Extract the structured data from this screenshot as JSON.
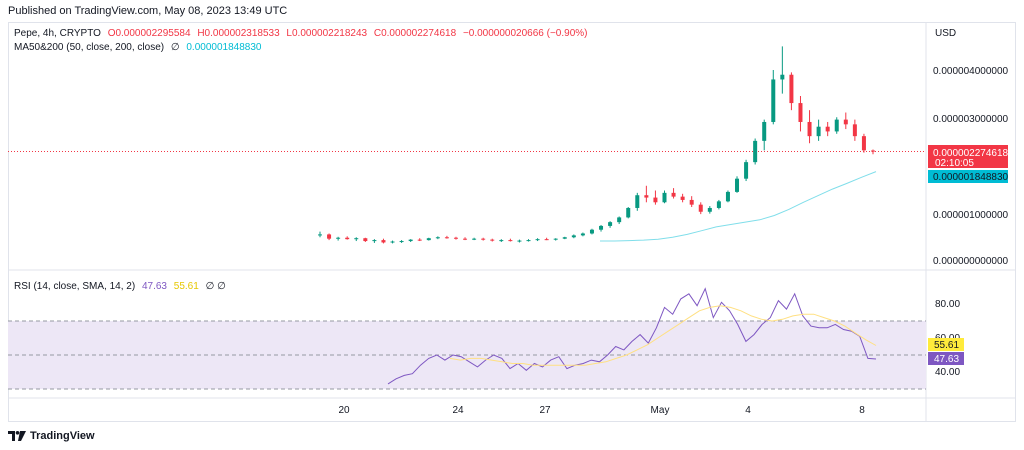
{
  "header": {
    "published": "Published on TradingView.com, May 08, 2023 13:49 UTC"
  },
  "legend": {
    "symbol": "Pepe, 4h, CRYPTO",
    "open": "O0.000002295584",
    "high": "H0.000002318533",
    "low": "L0.000002218243",
    "close": "C0.000002274618",
    "change": "−0.000000020666 (−0.90%)",
    "ma_label": "MA50&200 (50, close, 200, close)",
    "ma_icon": "∅",
    "ma_value": "0.000001848830",
    "rsi_label": "RSI (14, close, SMA, 14, 2)",
    "rsi_value": "47.63",
    "rsi_sma_value": "55.61",
    "rsi_icons": "∅ ∅"
  },
  "price_axis": {
    "currency": "USD",
    "ticks": [
      "0.000004000000",
      "0.000003000000",
      "0.000002000000",
      "0.000001000000",
      "0.000000000000"
    ],
    "last_price_tag": "0.000002274618",
    "countdown": "02:10:05",
    "ma_tag": "0.000001848830"
  },
  "rsi_axis": {
    "ticks": [
      "80.00",
      "60.00",
      "40.00"
    ],
    "tag_sma": "55.61",
    "tag_rsi": "47.63"
  },
  "time_axis": {
    "ticks": [
      "20",
      "24",
      "27",
      "May",
      "4",
      "8"
    ]
  },
  "footer": {
    "brand": "TradingView"
  },
  "colors": {
    "up": "#089981",
    "down": "#f23645",
    "ma": "#80deea",
    "rsi": "#7e57c2",
    "rsi_sma": "#ffe082",
    "rsi_band": "#ede7f6",
    "price_tag": "#f23645",
    "ma_tag": "#00bcd4"
  },
  "chart_data": [
    {
      "type": "candlestick",
      "title": "Pepe, 4h, CRYPTO",
      "ylabel": "USD",
      "ylim": [
        0,
        4.5e-06
      ],
      "x_ticks": [
        "20",
        "24",
        "27",
        "May",
        "4",
        "8"
      ],
      "last_close": 2.274618e-06,
      "ohlc_points": [
        [
          5e-07,
          5.8e-07,
          4.6e-07,
          5.2e-07
        ],
        [
          5.2e-07,
          5.4e-07,
          4e-07,
          4.3e-07
        ],
        [
          4.3e-07,
          4.7e-07,
          3.9e-07,
          4.5e-07
        ],
        [
          4.5e-07,
          4.8e-07,
          4.1e-07,
          4.2e-07
        ],
        [
          4.2e-07,
          4.6e-07,
          3.8e-07,
          4.4e-07
        ],
        [
          4.4e-07,
          4.5e-07,
          3.6e-07,
          3.8e-07
        ],
        [
          3.8e-07,
          4.2e-07,
          3.4e-07,
          4e-07
        ],
        [
          4e-07,
          4.3e-07,
          3.3e-07,
          3.5e-07
        ],
        [
          3.5e-07,
          3.9e-07,
          3.3e-07,
          3.7e-07
        ],
        [
          3.7e-07,
          4e-07,
          3.4e-07,
          3.8e-07
        ],
        [
          3.8e-07,
          4.2e-07,
          3.6e-07,
          4.1e-07
        ],
        [
          4.1e-07,
          4.4e-07,
          3.8e-07,
          4e-07
        ],
        [
          4e-07,
          4.5e-07,
          3.9e-07,
          4.4e-07
        ],
        [
          4.4e-07,
          4.8e-07,
          4.2e-07,
          4.6e-07
        ],
        [
          4.6e-07,
          4.9e-07,
          4.3e-07,
          4.5e-07
        ],
        [
          4.5e-07,
          4.7e-07,
          4.1e-07,
          4.3e-07
        ],
        [
          4.3e-07,
          4.6e-07,
          4e-07,
          4.2e-07
        ],
        [
          4.2e-07,
          4.5e-07,
          4e-07,
          4.3e-07
        ],
        [
          4.3e-07,
          4.5e-07,
          3.9e-07,
          4.1e-07
        ],
        [
          4.1e-07,
          4.3e-07,
          3.7e-07,
          3.9e-07
        ],
        [
          3.9e-07,
          4.2e-07,
          3.6e-07,
          4e-07
        ],
        [
          4e-07,
          4.3e-07,
          3.7e-07,
          3.8e-07
        ],
        [
          3.8e-07,
          4.1e-07,
          3.5e-07,
          3.9e-07
        ],
        [
          3.9e-07,
          4.2e-07,
          3.7e-07,
          4e-07
        ],
        [
          4e-07,
          4.4e-07,
          3.8e-07,
          4.2e-07
        ],
        [
          4.2e-07,
          4.5e-07,
          4e-07,
          4.1e-07
        ],
        [
          4.1e-07,
          4.4e-07,
          3.9e-07,
          4.3e-07
        ],
        [
          4.3e-07,
          4.7e-07,
          4.2e-07,
          4.6e-07
        ],
        [
          4.6e-07,
          5.2e-07,
          4.4e-07,
          5e-07
        ],
        [
          5e-07,
          5.6e-07,
          4.8e-07,
          5.4e-07
        ],
        [
          5.4e-07,
          6.4e-07,
          5.2e-07,
          6.2e-07
        ],
        [
          6.2e-07,
          7.2e-07,
          5.8e-07,
          7e-07
        ],
        [
          7e-07,
          8e-07,
          6.6e-07,
          7.8e-07
        ],
        [
          7.8e-07,
          9e-07,
          7.4e-07,
          8.8e-07
        ],
        [
          8.8e-07,
          1.1e-06,
          8.6e-07,
          1.08e-06
        ],
        [
          1.08e-06,
          1.4e-06,
          1.02e-06,
          1.35e-06
        ],
        [
          1.35e-06,
          1.55e-06,
          1.2e-06,
          1.3e-06
        ],
        [
          1.3e-06,
          1.45e-06,
          1.15e-06,
          1.2e-06
        ],
        [
          1.2e-06,
          1.45e-06,
          1.18e-06,
          1.4e-06
        ],
        [
          1.4e-06,
          1.5e-06,
          1.28e-06,
          1.32e-06
        ],
        [
          1.32e-06,
          1.38e-06,
          1.2e-06,
          1.25e-06
        ],
        [
          1.25e-06,
          1.33e-06,
          1.1e-06,
          1.15e-06
        ],
        [
          1.15e-06,
          1.2e-06,
          9.5e-07,
          1e-06
        ],
        [
          1e-06,
          1.12e-06,
          9.6e-07,
          1.08e-06
        ],
        [
          1.08e-06,
          1.25e-06,
          1.05e-06,
          1.22e-06
        ],
        [
          1.22e-06,
          1.45e-06,
          1.2e-06,
          1.42e-06
        ],
        [
          1.42e-06,
          1.75e-06,
          1.4e-06,
          1.7e-06
        ],
        [
          1.7e-06,
          2.1e-06,
          1.65e-06,
          2.05e-06
        ],
        [
          2.05e-06,
          2.55e-06,
          2e-06,
          2.5e-06
        ],
        [
          2.5e-06,
          2.95e-06,
          2.3e-06,
          2.9e-06
        ],
        [
          2.9e-06,
          4e-06,
          2.85e-06,
          3.8e-06
        ],
        [
          3.8e-06,
          4.5e-06,
          3.5e-06,
          3.9e-06
        ],
        [
          3.9e-06,
          3.95e-06,
          3.15e-06,
          3.3e-06
        ],
        [
          3.3e-06,
          3.45e-06,
          2.7e-06,
          2.9e-06
        ],
        [
          2.9e-06,
          3.15e-06,
          2.45e-06,
          2.6e-06
        ],
        [
          2.6e-06,
          2.95e-06,
          2.5e-06,
          2.8e-06
        ],
        [
          2.8e-06,
          2.9e-06,
          2.6e-06,
          2.7e-06
        ],
        [
          2.7e-06,
          3e-06,
          2.65e-06,
          2.95e-06
        ],
        [
          2.95e-06,
          3.1e-06,
          2.75e-06,
          2.85e-06
        ],
        [
          2.85e-06,
          2.95e-06,
          2.5e-06,
          2.6e-06
        ],
        [
          2.6e-06,
          2.65e-06,
          2.25e-06,
          2.3e-06
        ],
        [
          2.295584e-06,
          2.318533e-06,
          2.218243e-06,
          2.274618e-06
        ]
      ],
      "ma_values": [
        3.8e-07,
        3.8e-07,
        3.9e-07,
        4e-07,
        4.2e-07,
        4.6e-07,
        5.2e-07,
        6e-07,
        6.8e-07,
        7.3e-07,
        7.8e-07,
        8.3e-07,
        9.2e-07,
        1.05e-06,
        1.2e-06,
        1.34e-06,
        1.48e-06,
        1.6e-06,
        1.73e-06,
        1.84883e-06
      ]
    },
    {
      "type": "line",
      "title": "RSI (14, close, SMA, 14, 2)",
      "ylim": [
        20,
        95
      ],
      "bands": [
        30,
        50,
        70
      ],
      "series": [
        {
          "name": "RSI",
          "values": [
            33,
            36,
            38,
            39,
            44,
            48,
            50,
            47,
            50,
            49,
            46,
            43,
            47,
            50,
            48,
            42,
            45,
            41,
            45,
            43,
            47,
            49,
            42,
            44,
            45,
            47,
            46,
            50,
            55,
            53,
            58,
            62,
            57,
            66,
            78,
            74,
            83,
            86,
            79,
            89,
            72,
            81,
            76,
            68,
            58,
            62,
            68,
            72,
            82,
            77,
            86,
            73,
            67,
            66,
            66,
            68,
            65,
            64,
            61,
            48,
            47.63
          ]
        },
        {
          "name": "SMA",
          "values": [
            48,
            47,
            48,
            48,
            47,
            46,
            45,
            45,
            44,
            44,
            44,
            44,
            44,
            44,
            45,
            46,
            48,
            50,
            53,
            56,
            60,
            64,
            68,
            72,
            76,
            78,
            79,
            78,
            76,
            73,
            71,
            70,
            71,
            73,
            74,
            74,
            72,
            70,
            67,
            63,
            59,
            55.61
          ]
        }
      ]
    }
  ]
}
